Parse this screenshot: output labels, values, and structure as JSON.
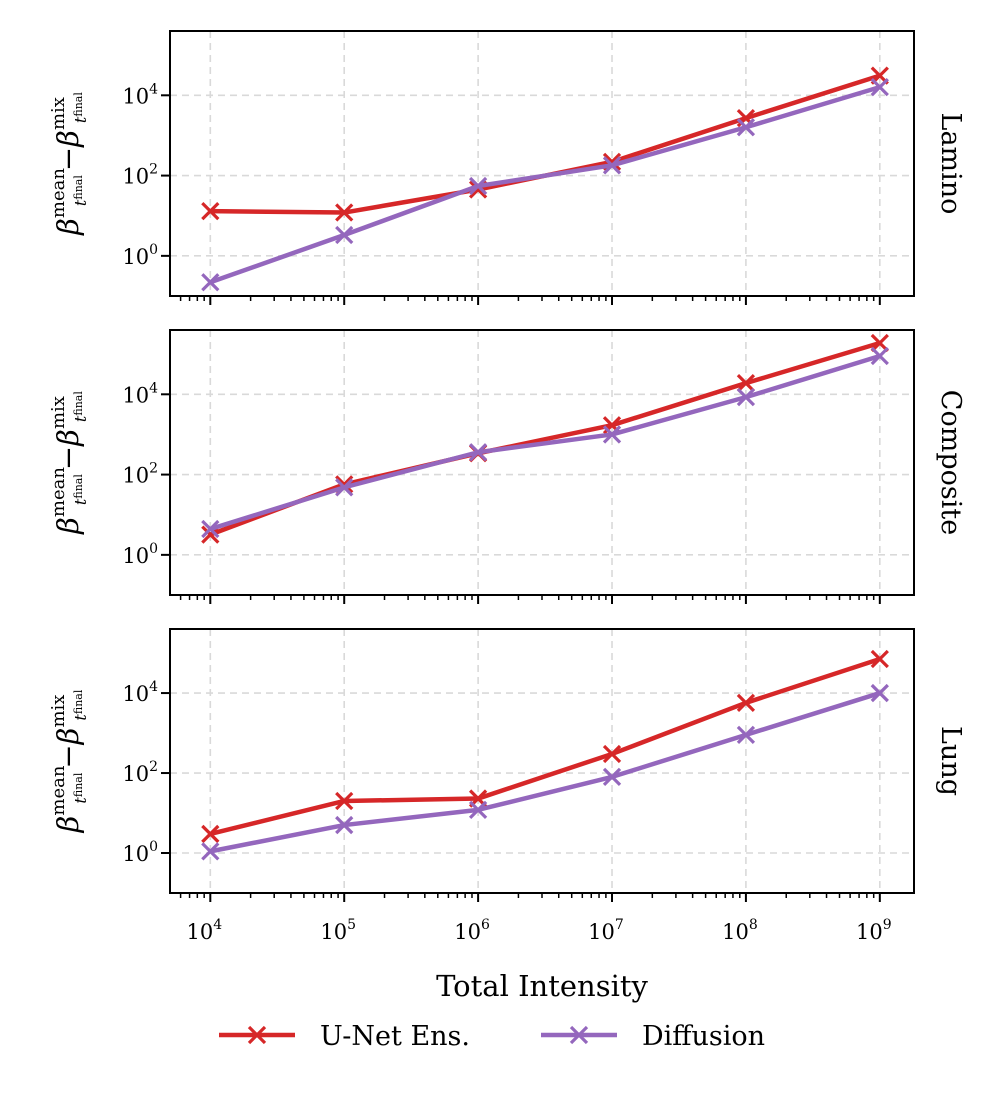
{
  "chart_data": {
    "type": "line",
    "xlabel": "Total Intensity",
    "x_scale": "log",
    "y_scale": "log",
    "x": [
      10000,
      100000,
      1000000,
      10000000,
      100000000,
      1000000000
    ],
    "xlim": [
      5000,
      1800000000
    ],
    "ylim": [
      0.1,
      400000
    ],
    "x_tick_labels": [
      {
        "base": "10",
        "exp": "4"
      },
      {
        "base": "10",
        "exp": "5"
      },
      {
        "base": "10",
        "exp": "6"
      },
      {
        "base": "10",
        "exp": "7"
      },
      {
        "base": "10",
        "exp": "8"
      },
      {
        "base": "10",
        "exp": "9"
      }
    ],
    "y_tick_labels": [
      {
        "base": "10",
        "exp": "0",
        "value": 1
      },
      {
        "base": "10",
        "exp": "2",
        "value": 100
      },
      {
        "base": "10",
        "exp": "4",
        "value": 10000
      }
    ],
    "ylabel": {
      "symbol": "β",
      "sup1": "mean",
      "sub1": "t",
      "subsub1": "final",
      "operator": "−",
      "sup2": "mix",
      "sub2": "t",
      "subsub2": "final"
    },
    "grid": true,
    "legend_position": "bottom-center",
    "series_style": [
      {
        "name": "U-Net Ens.",
        "color": "#d62728"
      },
      {
        "name": "Diffusion",
        "color": "#9467bd"
      }
    ],
    "panels": [
      {
        "label": "Lamino",
        "series": [
          {
            "name": "U-Net Ens.",
            "values": [
              13,
              12,
              45,
              220,
              2700,
              31000
            ]
          },
          {
            "name": "Diffusion",
            "values": [
              0.22,
              3.3,
              55,
              180,
              1600,
              16000
            ]
          }
        ]
      },
      {
        "label": "Composite",
        "series": [
          {
            "name": "U-Net Ens.",
            "values": [
              3.2,
              57,
              340,
              1700,
              19000,
              190000
            ]
          },
          {
            "name": "Diffusion",
            "values": [
              4.4,
              48,
              360,
              1000,
              8500,
              90000
            ]
          }
        ]
      },
      {
        "label": "Lung",
        "series": [
          {
            "name": "U-Net Ens.",
            "values": [
              3.0,
              20,
              23,
              300,
              5700,
              71000
            ]
          },
          {
            "name": "Diffusion",
            "values": [
              1.1,
              5.0,
              12,
              80,
              900,
              10000
            ]
          }
        ]
      }
    ]
  }
}
